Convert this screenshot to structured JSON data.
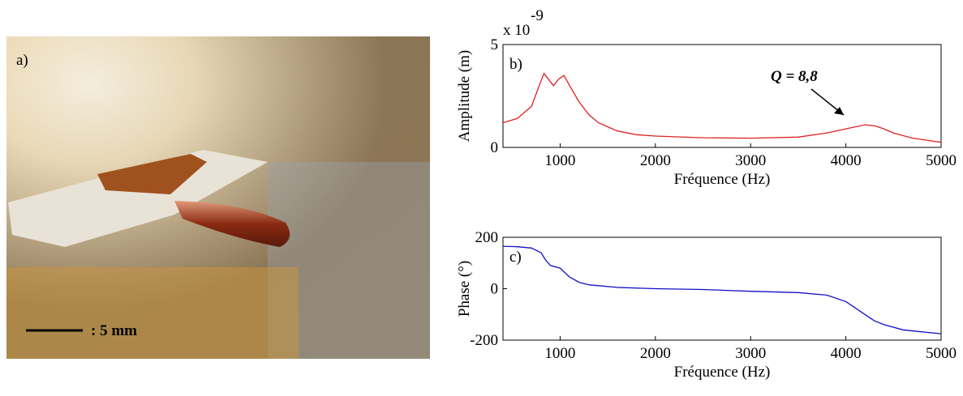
{
  "photo": {
    "label": "a)",
    "scale_label": ": 5 mm"
  },
  "chart_data": [
    {
      "type": "line",
      "panel_label": "b)",
      "xlabel": "Fréquence (Hz)",
      "ylabel": "Amplitude (m)",
      "y_multiplier": "x 10",
      "y_multiplier_exponent": "-9",
      "annotation": "Q = 8,8",
      "xlim": [
        400,
        5000
      ],
      "xticks": [
        1000,
        2000,
        3000,
        4000,
        5000
      ],
      "ylim": [
        0,
        5
      ],
      "yticks": [
        0,
        5
      ],
      "series": [
        {
          "color": "#e02020",
          "x": [
            400,
            550,
            700,
            780,
            830,
            880,
            930,
            980,
            1040,
            1100,
            1200,
            1300,
            1400,
            1600,
            1800,
            2000,
            2500,
            3000,
            3500,
            3800,
            4000,
            4100,
            4200,
            4300,
            4400,
            4500,
            4700,
            5000
          ],
          "values": [
            1.2,
            1.4,
            2.0,
            3.0,
            3.6,
            3.3,
            3.0,
            3.3,
            3.5,
            3.0,
            2.2,
            1.6,
            1.2,
            0.8,
            0.62,
            0.55,
            0.47,
            0.45,
            0.5,
            0.7,
            0.9,
            1.0,
            1.1,
            1.05,
            0.9,
            0.7,
            0.45,
            0.25
          ]
        }
      ]
    },
    {
      "type": "line",
      "panel_label": "c)",
      "xlabel": "Fréquence (Hz)",
      "ylabel": "Phase (°)",
      "xlim": [
        400,
        5000
      ],
      "xticks": [
        1000,
        2000,
        3000,
        4000,
        5000
      ],
      "ylim": [
        -200,
        200
      ],
      "yticks": [
        -200,
        0,
        200
      ],
      "series": [
        {
          "color": "#1010c8",
          "x": [
            400,
            550,
            700,
            800,
            850,
            900,
            1000,
            1100,
            1200,
            1300,
            1600,
            2000,
            2500,
            3000,
            3500,
            3800,
            4000,
            4100,
            4200,
            4300,
            4400,
            4600,
            4800,
            5000
          ],
          "values": [
            165,
            163,
            158,
            140,
            110,
            90,
            80,
            45,
            25,
            15,
            5,
            0,
            -3,
            -10,
            -15,
            -25,
            -50,
            -75,
            -100,
            -125,
            -140,
            -160,
            -168,
            -175
          ]
        }
      ]
    }
  ]
}
